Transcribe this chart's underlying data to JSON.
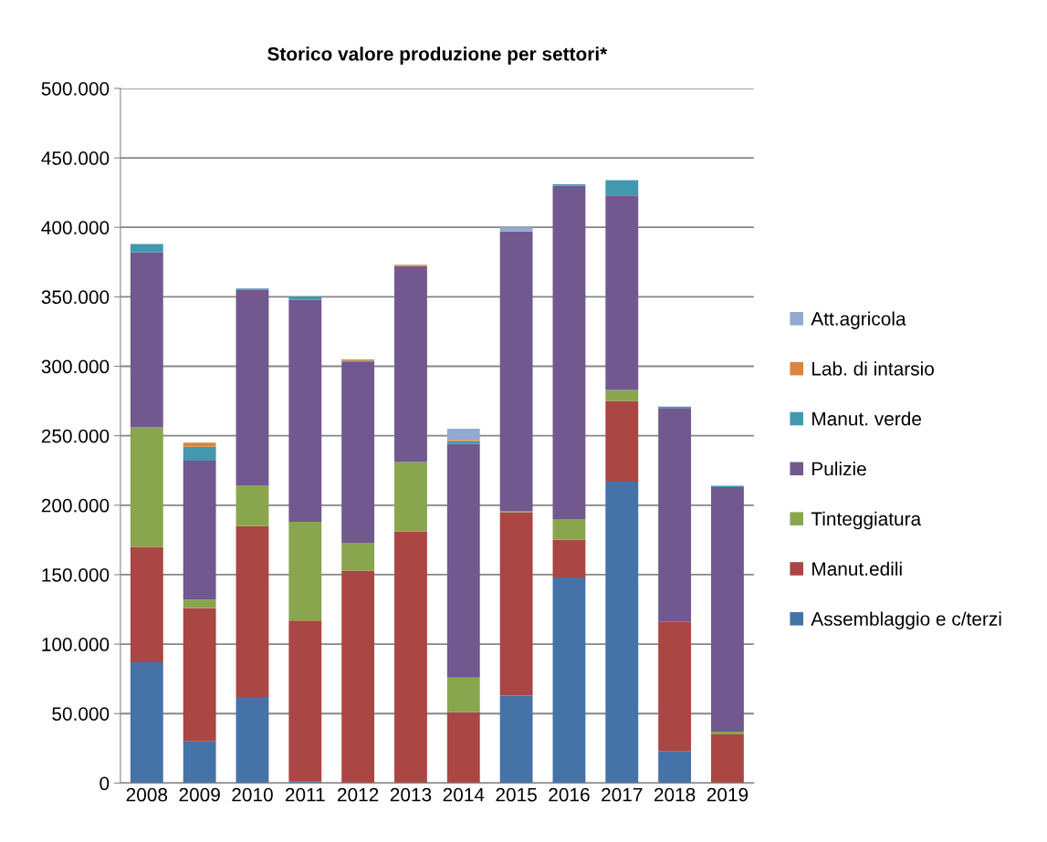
{
  "chart_data": {
    "type": "bar",
    "title": "Storico valore produzione per settori*",
    "stacked": true,
    "categories": [
      "2008",
      "2009",
      "2010",
      "2011",
      "2012",
      "2013",
      "2014",
      "2015",
      "2016",
      "2017",
      "2018",
      "2019"
    ],
    "series": [
      {
        "name": "Assemblaggio e c/terzi",
        "color": "#4572a7",
        "values": [
          87000,
          30000,
          62000,
          1000,
          0,
          0,
          0,
          63000,
          148000,
          217000,
          23000,
          0
        ]
      },
      {
        "name": "Manut.edili",
        "color": "#aa4643",
        "values": [
          83000,
          96000,
          123000,
          116000,
          153000,
          181000,
          51000,
          132000,
          27000,
          58000,
          93000,
          35000
        ]
      },
      {
        "name": "Tinteggiatura",
        "color": "#89a54e",
        "values": [
          86000,
          6000,
          29000,
          71000,
          20000,
          50000,
          25000,
          1000,
          15000,
          8000,
          0,
          2000
        ]
      },
      {
        "name": "Pulizie",
        "color": "#71588f",
        "values": [
          126000,
          100000,
          141000,
          160000,
          130000,
          141000,
          168000,
          201000,
          240000,
          140000,
          154000,
          176000
        ]
      },
      {
        "name": "Manut. verde",
        "color": "#4198af",
        "values": [
          6000,
          10000,
          1000,
          2000,
          1000,
          0,
          2000,
          0,
          1000,
          11000,
          1000,
          1000
        ]
      },
      {
        "name": "Lab. di intarsio",
        "color": "#db843d",
        "values": [
          0,
          3000,
          0,
          0,
          1000,
          1000,
          1000,
          0,
          0,
          0,
          0,
          0
        ]
      },
      {
        "name": "Att.agricola",
        "color": "#93a9cf",
        "values": [
          0,
          0,
          0,
          0,
          0,
          0,
          8000,
          3000,
          0,
          0,
          0,
          0
        ]
      }
    ],
    "ylim": [
      0,
      500000
    ],
    "yticks": [
      {
        "value": 0,
        "label": "0"
      },
      {
        "value": 50000,
        "label": "50.000"
      },
      {
        "value": 100000,
        "label": "100.000"
      },
      {
        "value": 150000,
        "label": "150.000"
      },
      {
        "value": 200000,
        "label": "200.000"
      },
      {
        "value": 250000,
        "label": "250.000"
      },
      {
        "value": 300000,
        "label": "300.000"
      },
      {
        "value": 350000,
        "label": "350.000"
      },
      {
        "value": 400000,
        "label": "400.000"
      },
      {
        "value": 450000,
        "label": "450.000"
      },
      {
        "value": 500000,
        "label": "500.000"
      }
    ],
    "grid": "y",
    "legend": "right"
  }
}
